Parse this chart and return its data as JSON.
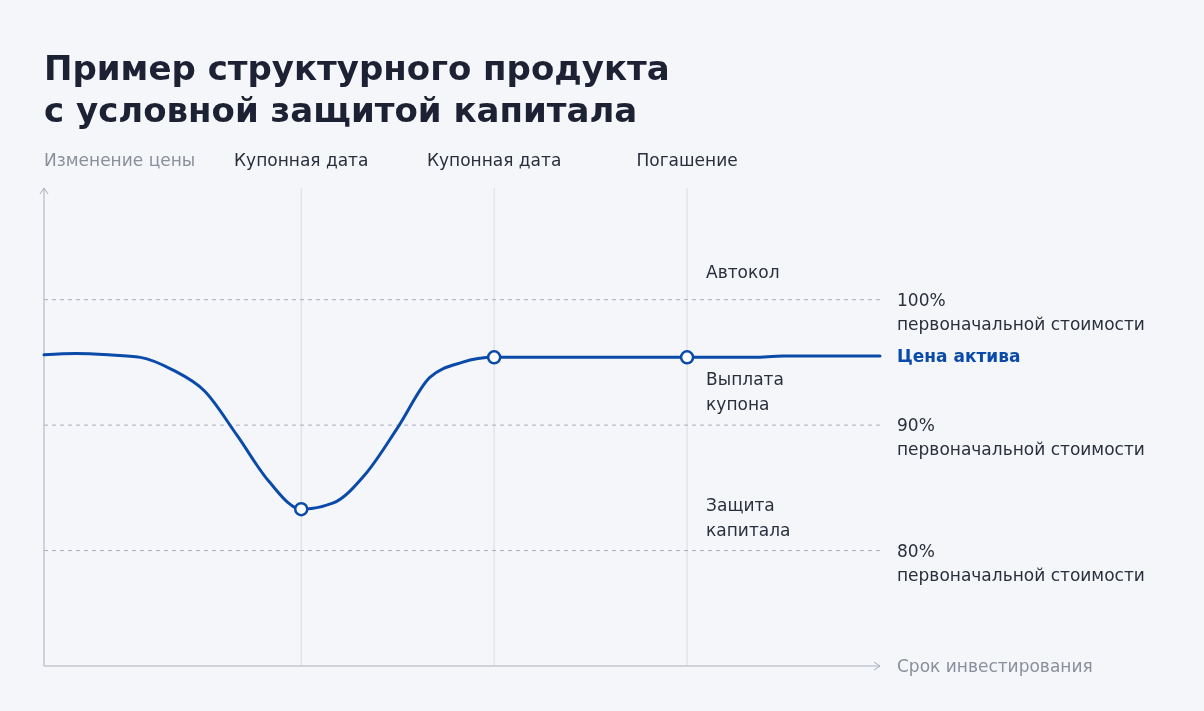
{
  "chart_data": {
    "type": "line",
    "title": "Пример структурного продукта\nс условной защитой капитала",
    "xlabel": "Срок инвестирования",
    "ylabel": "Изменение цены",
    "ylim": [
      70.8,
      108.9
    ],
    "yticks": [
      {
        "value": 100,
        "label": "100%"
      },
      {
        "value": 90,
        "label": "90%"
      },
      {
        "value": 80,
        "label": "80%"
      }
    ],
    "grid": "x",
    "categories": [
      null,
      null,
      null,
      null,
      null,
      null,
      null,
      null,
      "Купонная дата",
      null,
      null,
      null,
      null,
      null,
      "Купонная дата",
      null,
      null,
      null,
      null,
      null,
      "Погашение",
      null,
      null,
      null,
      null,
      null,
      null
    ],
    "series": [
      {
        "name": "Цена актива",
        "color": "#0a4aa8",
        "line_style": "solid",
        "values": [
          95.6,
          95.7,
          95.6,
          95.4,
          94.4,
          92.7,
          89.2,
          85.5,
          83.3,
          83.8,
          86.1,
          89.8,
          93.8,
          95.0,
          95.4,
          95.4,
          95.4,
          95.4,
          95.4,
          95.4,
          95.4,
          95.4,
          95.4,
          95.5,
          95.5,
          95.5,
          95.5
        ]
      },
      {
        "type": "scatter",
        "color": "#0a4aa8",
        "marker": "circle",
        "values": [
          null,
          null,
          null,
          null,
          null,
          null,
          null,
          null,
          83.3,
          null,
          null,
          null,
          null,
          null,
          95.4,
          null,
          null,
          null,
          null,
          null,
          95.4,
          null,
          null,
          null,
          null,
          null,
          null
        ]
      }
    ],
    "ref_lines": [
      {
        "axis": "y",
        "value": 100,
        "label": "первоначальной стоимости",
        "color": "#a9aebb",
        "line_style": "dashed"
      },
      {
        "axis": "y",
        "value": 90,
        "label": "первоначальной стоимости",
        "color": "#a9aebb",
        "line_style": "dashed"
      },
      {
        "axis": "y",
        "value": 80,
        "label": "первоначальной стоимости",
        "color": "#a9aebb",
        "line_style": "dashed"
      }
    ],
    "annotations": [
      "Автокол",
      "Выплата\nкупона",
      "Защита\nкапитала"
    ]
  }
}
